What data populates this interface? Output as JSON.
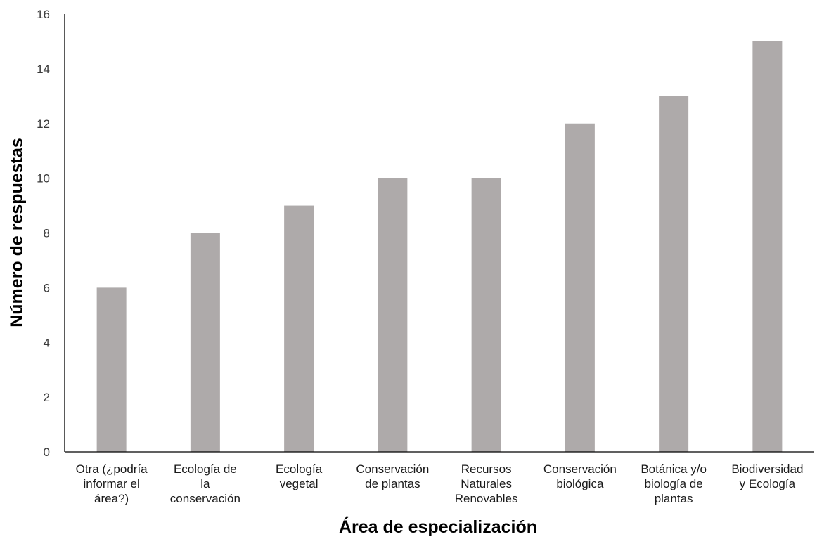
{
  "chart_data": {
    "type": "bar",
    "title": "",
    "xlabel": "Área de especialización",
    "ylabel": "Número de respuestas",
    "ylim": [
      0,
      16
    ],
    "yticks": [
      0,
      2,
      4,
      6,
      8,
      10,
      12,
      14,
      16
    ],
    "grid": false,
    "legend": "none",
    "bar_color": "#aeaaaa",
    "axis_color": "#000000",
    "categories": [
      [
        "Otra (¿podría",
        "informar el",
        "área?)"
      ],
      [
        "Ecología de",
        "la",
        "conservación"
      ],
      [
        "Ecología",
        "vegetal"
      ],
      [
        "Conservación",
        "de plantas"
      ],
      [
        "Recursos",
        "Naturales",
        "Renovables"
      ],
      [
        "Conservación",
        "biológica"
      ],
      [
        "Botánica y/o",
        "biología de",
        "plantas"
      ],
      [
        "Biodiversidad",
        "y Ecología"
      ]
    ],
    "values": [
      6,
      8,
      9,
      10,
      10,
      12,
      13,
      15
    ]
  }
}
